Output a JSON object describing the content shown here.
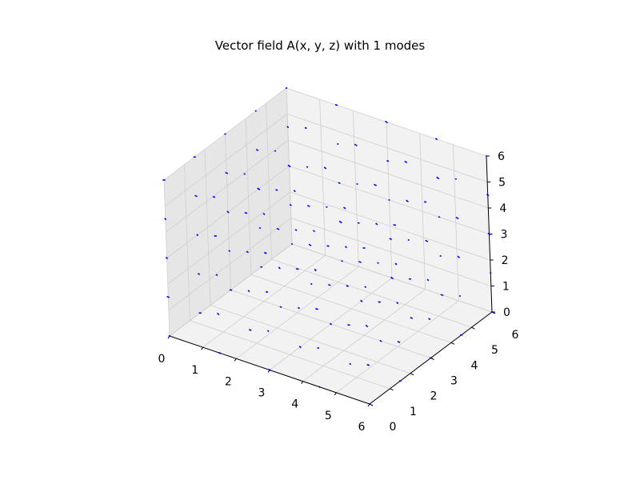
{
  "chart_data": {
    "type": "quiver3d",
    "title": "Vector field A(x, y, z) with 1 modes",
    "xlabel": "",
    "ylabel": "",
    "zlabel": "",
    "xlim": [
      0,
      6
    ],
    "ylim": [
      0,
      6
    ],
    "zlim": [
      0,
      6
    ],
    "x_ticks": [
      "0",
      "1",
      "2",
      "3",
      "4",
      "5",
      "6"
    ],
    "y_ticks": [
      "0",
      "1",
      "2",
      "3",
      "4",
      "5",
      "6"
    ],
    "z_ticks": [
      "0",
      "1",
      "2",
      "3",
      "4",
      "5",
      "6"
    ],
    "grid": true,
    "arrow_color": "#0000ff",
    "grid_points_per_axis": 5,
    "grid_values": [
      0,
      1.5,
      3,
      4.5,
      6
    ]
  }
}
